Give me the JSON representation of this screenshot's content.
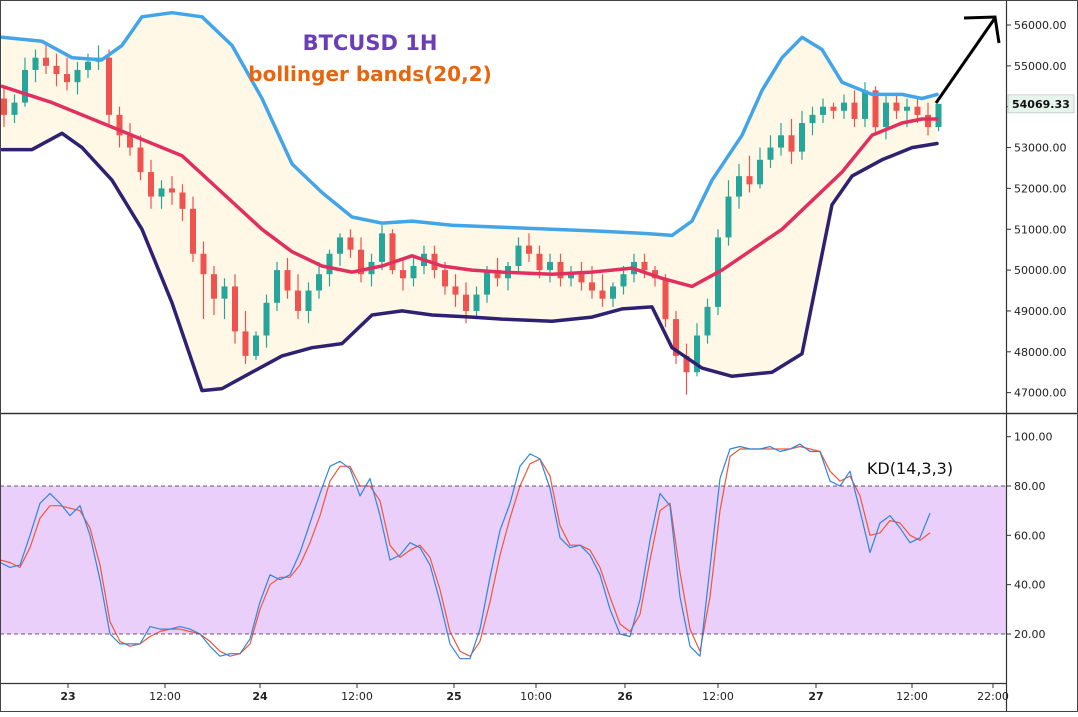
{
  "chart_data": [
    {
      "type": "candlestick",
      "title": "BTCUSD 1H",
      "subtitle": "bollinger bands(20,2)",
      "ylim": [
        46700,
        56500
      ],
      "y_ticks": [
        "56000.00",
        "55000.00",
        "54000.00",
        "53000.00",
        "52000.00",
        "51000.00",
        "50000.00",
        "49000.00",
        "48000.00",
        "47000.00"
      ],
      "last_price": "54069.33",
      "colors": {
        "up": "#26a69a",
        "down": "#ef5350",
        "upper_band": "#42a5e8",
        "middle_band": "#e0305f",
        "lower_band": "#2e2172",
        "band_fill": "#fff8e6",
        "title": "#6a3fb5",
        "subtitle": "#e8650c"
      },
      "series": [
        {
          "name": "upper_band",
          "values": [
            [
              0,
              55700
            ],
            [
              8,
              55600
            ],
            [
              14,
              55200
            ],
            [
              20,
              55150
            ],
            [
              24,
              55500
            ],
            [
              28,
              56200
            ],
            [
              34,
              56300
            ],
            [
              40,
              56200
            ],
            [
              46,
              55500
            ],
            [
              52,
              54200
            ],
            [
              58,
              52600
            ],
            [
              64,
              51900
            ],
            [
              70,
              51300
            ],
            [
              76,
              51150
            ],
            [
              82,
              51200
            ],
            [
              90,
              51100
            ],
            [
              100,
              51050
            ],
            [
              110,
              51000
            ],
            [
              120,
              50950
            ],
            [
              128,
              50900
            ],
            [
              134,
              50850
            ],
            [
              138,
              51200
            ],
            [
              142,
              52200
            ],
            [
              148,
              53300
            ],
            [
              152,
              54400
            ],
            [
              156,
              55200
            ],
            [
              160,
              55700
            ],
            [
              164,
              55400
            ],
            [
              168,
              54600
            ],
            [
              174,
              54300
            ],
            [
              180,
              54300
            ],
            [
              184,
              54200
            ],
            [
              187,
              54300
            ]
          ]
        },
        {
          "name": "middle_band",
          "values": [
            [
              0,
              54500
            ],
            [
              10,
              54100
            ],
            [
              20,
              53600
            ],
            [
              28,
              53200
            ],
            [
              36,
              52800
            ],
            [
              44,
              51900
            ],
            [
              52,
              51000
            ],
            [
              58,
              50450
            ],
            [
              64,
              50100
            ],
            [
              70,
              49950
            ],
            [
              76,
              50100
            ],
            [
              82,
              50350
            ],
            [
              88,
              50100
            ],
            [
              94,
              50000
            ],
            [
              100,
              49950
            ],
            [
              110,
              49900
            ],
            [
              118,
              49950
            ],
            [
              126,
              50050
            ],
            [
              132,
              49800
            ],
            [
              138,
              49600
            ],
            [
              144,
              50000
            ],
            [
              150,
              50500
            ],
            [
              156,
              51000
            ],
            [
              162,
              51700
            ],
            [
              168,
              52400
            ],
            [
              174,
              53300
            ],
            [
              180,
              53600
            ],
            [
              184,
              53700
            ],
            [
              187,
              53700
            ]
          ]
        },
        {
          "name": "lower_band",
          "values": [
            [
              0,
              52950
            ],
            [
              6,
              52950
            ],
            [
              12,
              53350
            ],
            [
              16,
              53000
            ],
            [
              22,
              52200
            ],
            [
              28,
              51000
            ],
            [
              34,
              49200
            ],
            [
              40,
              47050
            ],
            [
              44,
              47100
            ],
            [
              50,
              47500
            ],
            [
              56,
              47900
            ],
            [
              62,
              48100
            ],
            [
              68,
              48200
            ],
            [
              74,
              48900
            ],
            [
              80,
              49000
            ],
            [
              86,
              48900
            ],
            [
              94,
              48850
            ],
            [
              100,
              48800
            ],
            [
              110,
              48750
            ],
            [
              118,
              48850
            ],
            [
              124,
              49050
            ],
            [
              130,
              49100
            ],
            [
              134,
              48100
            ],
            [
              140,
              47600
            ],
            [
              146,
              47400
            ],
            [
              154,
              47500
            ],
            [
              160,
              47950
            ],
            [
              166,
              51600
            ],
            [
              170,
              52300
            ],
            [
              176,
              52700
            ],
            [
              182,
              53000
            ],
            [
              187,
              53100
            ]
          ]
        }
      ],
      "candles": [
        [
          54200,
          54500,
          53500,
          53800
        ],
        [
          53800,
          54300,
          53600,
          54100
        ],
        [
          54100,
          55200,
          54000,
          54900
        ],
        [
          54900,
          55400,
          54600,
          55200
        ],
        [
          55200,
          55500,
          54800,
          55000
        ],
        [
          55000,
          55300,
          54500,
          54800
        ],
        [
          54800,
          55200,
          54400,
          54600
        ],
        [
          54600,
          55100,
          54300,
          54900
        ],
        [
          54900,
          55300,
          54700,
          55100
        ],
        [
          55100,
          55500,
          54900,
          55200
        ],
        [
          55200,
          55400,
          53500,
          53800
        ],
        [
          53800,
          54000,
          53000,
          53300
        ],
        [
          53300,
          53600,
          52800,
          53000
        ],
        [
          53000,
          53300,
          52200,
          52400
        ],
        [
          52400,
          52700,
          51500,
          51800
        ],
        [
          51800,
          52200,
          51500,
          52000
        ],
        [
          52000,
          52300,
          51600,
          51900
        ],
        [
          51900,
          52100,
          51200,
          51500
        ],
        [
          51500,
          51800,
          50200,
          50400
        ],
        [
          50400,
          50700,
          48800,
          49900
        ],
        [
          49900,
          50100,
          48900,
          49300
        ],
        [
          49300,
          49800,
          48800,
          49600
        ],
        [
          49600,
          49900,
          48200,
          48500
        ],
        [
          48500,
          49000,
          47700,
          47900
        ],
        [
          47900,
          48500,
          47800,
          48400
        ],
        [
          48400,
          49400,
          48100,
          49200
        ],
        [
          49200,
          50200,
          49000,
          50000
        ],
        [
          50000,
          50300,
          49300,
          49500
        ],
        [
          49500,
          49900,
          48800,
          49000
        ],
        [
          49000,
          49700,
          48700,
          49500
        ],
        [
          49500,
          50200,
          49300,
          49900
        ],
        [
          49900,
          50500,
          49600,
          50400
        ],
        [
          50400,
          50900,
          50100,
          50800
        ],
        [
          50800,
          51000,
          50300,
          50500
        ],
        [
          50500,
          50800,
          49700,
          49900
        ],
        [
          49900,
          50400,
          49600,
          50200
        ],
        [
          50200,
          51100,
          50000,
          50900
        ],
        [
          50900,
          51000,
          49900,
          50000
        ],
        [
          50000,
          50300,
          49500,
          49800
        ],
        [
          49800,
          50300,
          49600,
          50100
        ],
        [
          50100,
          50600,
          49900,
          50400
        ],
        [
          50400,
          50600,
          49800,
          50000
        ],
        [
          50000,
          50200,
          49400,
          49600
        ],
        [
          49600,
          49900,
          49100,
          49400
        ],
        [
          49400,
          49700,
          48700,
          49000
        ],
        [
          49000,
          49600,
          48800,
          49400
        ],
        [
          49400,
          50100,
          49200,
          50000
        ],
        [
          50000,
          50300,
          49600,
          49800
        ],
        [
          49800,
          50200,
          49500,
          50100
        ],
        [
          50100,
          50800,
          49900,
          50600
        ],
        [
          50600,
          50900,
          50200,
          50400
        ],
        [
          50400,
          50600,
          49800,
          50000
        ],
        [
          50000,
          50400,
          49700,
          50200
        ],
        [
          50200,
          50400,
          49600,
          49800
        ],
        [
          49800,
          50100,
          49600,
          49900
        ],
        [
          49900,
          50200,
          49500,
          49700
        ],
        [
          49700,
          50100,
          49300,
          49500
        ],
        [
          49500,
          49900,
          49100,
          49300
        ],
        [
          49300,
          49700,
          49100,
          49600
        ],
        [
          49600,
          50100,
          49400,
          49900
        ],
        [
          49900,
          50400,
          49700,
          50200
        ],
        [
          50200,
          50400,
          49800,
          50000
        ],
        [
          50000,
          50100,
          49600,
          49800
        ],
        [
          49800,
          49900,
          48600,
          48800
        ],
        [
          48800,
          49000,
          47700,
          47900
        ],
        [
          47900,
          48200,
          46950,
          47500
        ],
        [
          47500,
          48700,
          47400,
          48400
        ],
        [
          48400,
          49300,
          48200,
          49100
        ],
        [
          49100,
          51000,
          48900,
          50800
        ],
        [
          50800,
          52200,
          50600,
          51800
        ],
        [
          51800,
          52600,
          51500,
          52300
        ],
        [
          52300,
          52800,
          51900,
          52100
        ],
        [
          52100,
          53000,
          52000,
          52700
        ],
        [
          52700,
          53300,
          52500,
          53000
        ],
        [
          53000,
          53600,
          52800,
          53300
        ],
        [
          53300,
          53700,
          52600,
          52900
        ],
        [
          52900,
          53900,
          52700,
          53600
        ],
        [
          53600,
          54000,
          53300,
          53800
        ],
        [
          53800,
          54200,
          53600,
          54000
        ],
        [
          54000,
          54100,
          53700,
          53900
        ],
        [
          53900,
          54300,
          53700,
          54100
        ],
        [
          54100,
          54400,
          53500,
          53700
        ],
        [
          53700,
          54600,
          53500,
          54400
        ],
        [
          54400,
          54500,
          53300,
          53500
        ],
        [
          53500,
          54300,
          53200,
          54100
        ],
        [
          54100,
          54300,
          53700,
          53900
        ],
        [
          53900,
          54200,
          53500,
          54000
        ],
        [
          54000,
          54200,
          53600,
          53800
        ],
        [
          53800,
          54100,
          53300,
          53500
        ],
        [
          53500,
          54069,
          53400,
          54069
        ]
      ]
    },
    {
      "type": "line",
      "title": "KD(14,3,3)",
      "ylim": [
        0,
        110
      ],
      "y_ticks": [
        "100.00",
        "80.00",
        "60.00",
        "40.00",
        "20.00"
      ],
      "overbought": 80,
      "oversold": 20,
      "colors": {
        "k": "#2f86e0",
        "d": "#f2563a",
        "zone": "#e9cffa"
      },
      "series": [
        {
          "name": "K",
          "values": [
            49,
            47,
            48,
            60,
            73,
            77,
            73,
            68,
            72,
            60,
            42,
            20,
            16,
            16,
            16,
            23,
            22,
            22,
            23,
            22,
            20,
            15,
            11,
            12,
            12,
            18,
            33,
            44,
            42,
            44,
            53,
            65,
            77,
            88,
            90,
            87,
            76,
            83,
            68,
            50,
            52,
            57,
            55,
            48,
            33,
            16,
            10,
            10,
            22,
            43,
            62,
            73,
            88,
            93,
            91,
            79,
            59,
            55,
            56,
            52,
            44,
            30,
            20,
            19,
            34,
            58,
            77,
            72,
            35,
            15,
            11,
            47,
            83,
            95,
            96,
            95,
            95,
            96,
            94,
            95,
            97,
            94,
            94,
            82,
            80,
            86,
            70,
            53,
            65,
            68,
            63,
            57,
            59,
            69
          ]
        },
        {
          "name": "D",
          "values": [
            50,
            49,
            47,
            55,
            67,
            72,
            72,
            71,
            70,
            63,
            48,
            25,
            17,
            15,
            16,
            19,
            21,
            22,
            22,
            21,
            20,
            17,
            13,
            11,
            12,
            16,
            30,
            40,
            43,
            43,
            48,
            57,
            68,
            82,
            88,
            88,
            80,
            80,
            74,
            56,
            51,
            54,
            56,
            51,
            38,
            21,
            13,
            11,
            17,
            33,
            52,
            67,
            80,
            89,
            91,
            84,
            64,
            56,
            56,
            54,
            47,
            35,
            24,
            21,
            28,
            50,
            70,
            73,
            45,
            22,
            13,
            35,
            70,
            92,
            95,
            95,
            95,
            95,
            95,
            95,
            96,
            95,
            94,
            86,
            82,
            84,
            76,
            60,
            61,
            66,
            65,
            60,
            58,
            61
          ]
        }
      ]
    }
  ],
  "x_axis": {
    "labels": [
      "23",
      "12:00",
      "24",
      "12:00",
      "25",
      "10:00",
      "26",
      "12:00",
      "27",
      "12:00",
      "22:00"
    ]
  }
}
